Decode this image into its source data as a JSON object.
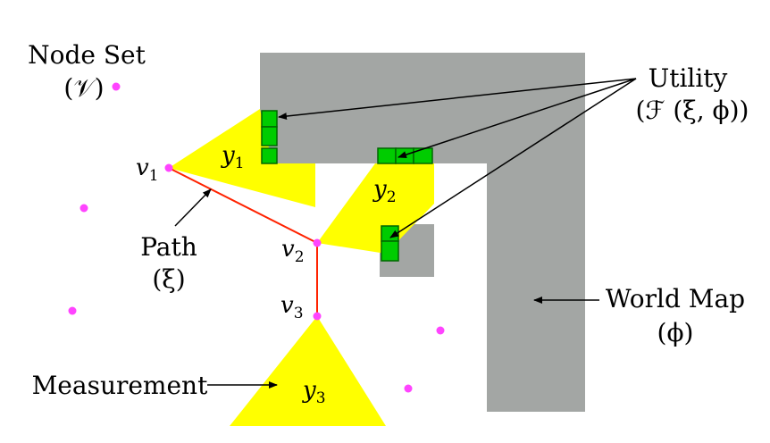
{
  "labels": {
    "node_set": "Node Set",
    "node_set_symbol": "(𝒱)",
    "utility": "Utility",
    "utility_symbol": "(ℱ (ξ, ϕ))",
    "world_map": "World Map",
    "world_map_symbol": "(ϕ)",
    "path": "Path",
    "path_symbol": "(ξ)",
    "measurement": "Measurement"
  },
  "nodes": {
    "v1": "v",
    "v1_sub": "1",
    "v2": "v",
    "v2_sub": "2",
    "v3": "v",
    "v3_sub": "3"
  },
  "measurements": {
    "y1": "y",
    "y1_sub": "1",
    "y2": "y",
    "y2_sub": "2",
    "y3": "y",
    "y3_sub": "3"
  },
  "colors": {
    "obstacle": "#a3a6a4",
    "measurement": "#ffff00",
    "utility_cell": "#00cc00",
    "utility_cell_border": "#006600",
    "path": "#ff2200",
    "node": "#ff44ff",
    "arrow": "#000000"
  }
}
